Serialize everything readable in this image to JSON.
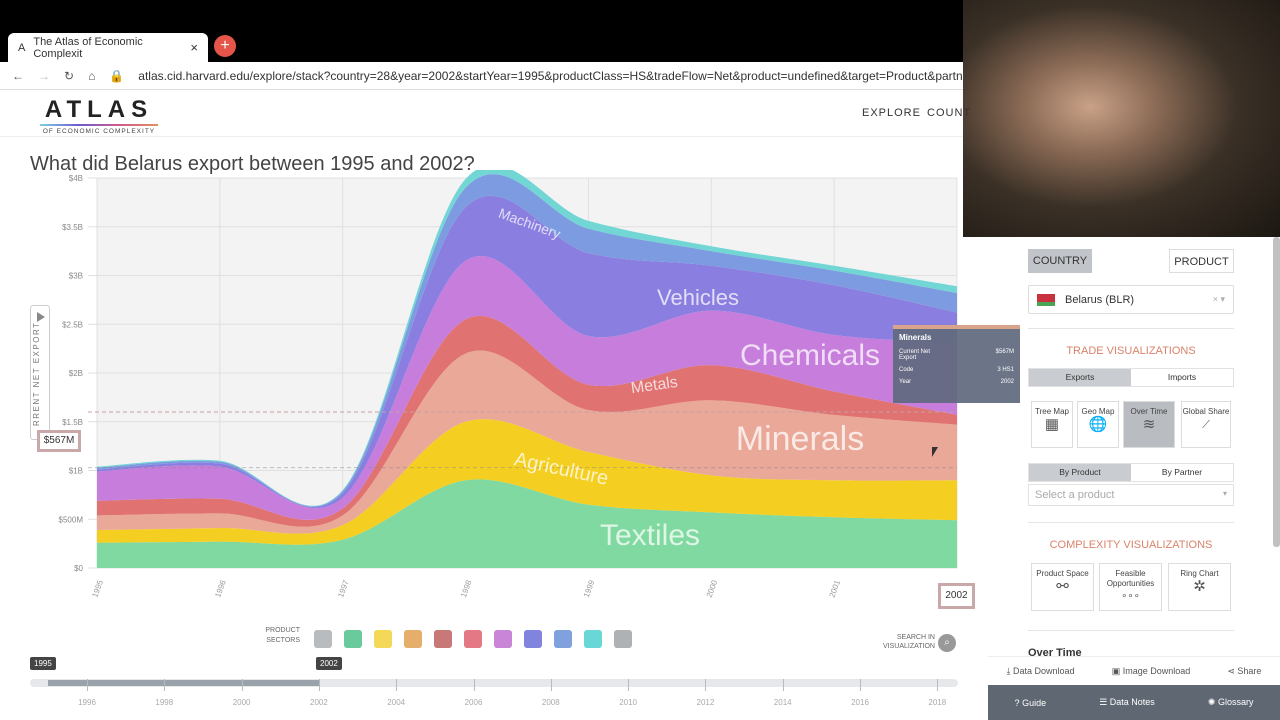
{
  "browser": {
    "tab_title": "The Atlas of Economic Complexit",
    "url": "atlas.cid.harvard.edu/explore/stack?country=28&year=2002&startYear=1995&productClass=HS&tradeFlow=Net&product=undefined&target=Product&partn"
  },
  "header": {
    "logo_main": "ATLAS",
    "logo_sub": "OF ECONOMIC COMPLEXITY",
    "nav": [
      "EXPLORE",
      "COUNT"
    ]
  },
  "page_title": "What did Belarus export between 1995 and 2002?",
  "side_tab_label": "RRENT NET EXPORT",
  "hover_value": "$567M",
  "hover_year": "2002",
  "tooltip": {
    "title": "Minerals",
    "rows": [
      {
        "k": "Current Net Export",
        "v": "$567M"
      },
      {
        "k": "Code",
        "v": "3 HS1"
      },
      {
        "k": "Year",
        "v": "2002"
      }
    ]
  },
  "chart_data": {
    "type": "area",
    "stacked": true,
    "x": [
      1995,
      1996,
      1997,
      1998,
      1999,
      2000,
      2001,
      2002
    ],
    "x_tick_labels": [
      "1995",
      "1996",
      "1997",
      "1998",
      "1999",
      "2000",
      "2001",
      "2002"
    ],
    "y_tick_labels": [
      "$0",
      "$500M",
      "$1B",
      "$1.5B",
      "$2B",
      "$2.5B",
      "$3B",
      "$3.5B",
      "$4B"
    ],
    "ylim": [
      0,
      4
    ],
    "y_unit": "USD billions",
    "grid": true,
    "series": [
      {
        "name": "Textiles",
        "color": "#7fd9a0",
        "values": [
          0.26,
          0.27,
          0.29,
          0.9,
          0.65,
          0.57,
          0.52,
          0.49
        ]
      },
      {
        "name": "Agriculture",
        "color": "#f4cf22",
        "values": [
          0.13,
          0.14,
          0.15,
          0.6,
          0.54,
          0.38,
          0.38,
          0.41
        ]
      },
      {
        "name": "Minerals",
        "color": "#e9a898",
        "values": [
          0.15,
          0.15,
          0.1,
          0.7,
          0.43,
          0.77,
          0.67,
          0.57
        ]
      },
      {
        "name": "Metals",
        "color": "#e07272",
        "values": [
          0.15,
          0.15,
          0.07,
          0.35,
          0.26,
          0.36,
          0.24,
          0.1
        ]
      },
      {
        "name": "Chemicals",
        "color": "#c67ddc",
        "values": [
          0.3,
          0.33,
          0.11,
          0.6,
          0.5,
          0.56,
          0.58,
          0.74
        ]
      },
      {
        "name": "Vehicles",
        "color": "#8a7ee0",
        "values": [
          0.02,
          0.03,
          0.05,
          0.55,
          0.85,
          0.46,
          0.51,
          0.31
        ]
      },
      {
        "name": "Machinery",
        "color": "#7c9be0",
        "values": [
          0.02,
          0.02,
          0.02,
          0.2,
          0.25,
          0.15,
          0.15,
          0.2
        ]
      },
      {
        "name": "",
        "color": "#72d6d4",
        "values": [
          0.01,
          0.01,
          0.01,
          0.09,
          0.08,
          0.05,
          0.05,
          0.07
        ]
      }
    ]
  },
  "sectors": {
    "label_1": "PRODUCT",
    "label_2": "SECTORS",
    "colors": [
      "#8a8f94",
      "#4fc28a",
      "#f2d13a",
      "#e0a050",
      "#c06060",
      "#e06070",
      "#c070d0",
      "#6a6ed8",
      "#6a90d8",
      "#50d0d0",
      "#a0a4a8"
    ]
  },
  "search": {
    "line1": "SEARCH IN",
    "line2": "VISUALIZATION"
  },
  "timeline": {
    "start": "1995",
    "end": "2002",
    "labels": [
      "1996",
      "1998",
      "2000",
      "2002",
      "2004",
      "2006",
      "2008",
      "2010",
      "2012",
      "2014",
      "2016",
      "2018"
    ]
  },
  "panel": {
    "country_btn": "COUNTRY",
    "product_btn": "PRODUCT",
    "country_value": "Belarus (BLR)",
    "trade_title": "TRADE VISUALIZATIONS",
    "exports": "Exports",
    "imports": "Imports",
    "trade_views": [
      {
        "label": "Tree Map",
        "icon": "treemap-icon"
      },
      {
        "label": "Geo Map",
        "icon": "globe-icon"
      },
      {
        "label": "Over Time",
        "icon": "stream-icon"
      },
      {
        "label": "Global Share",
        "icon": "line-chart-icon"
      }
    ],
    "by_product": "By Product",
    "by_partner": "By Partner",
    "product_placeholder": "Select a product",
    "complexity_title": "COMPLEXITY VISUALIZATIONS",
    "complexity_views": [
      {
        "label": "Product Space"
      },
      {
        "label": "Feasible Opportunities"
      },
      {
        "label": "Ring Chart"
      }
    ],
    "over_time": "Over Time",
    "data_download": "Data Download",
    "image_download": "Image Download",
    "share": "Share",
    "guide": "Guide",
    "data_notes": "Data Notes",
    "glossary": "Glossary"
  }
}
